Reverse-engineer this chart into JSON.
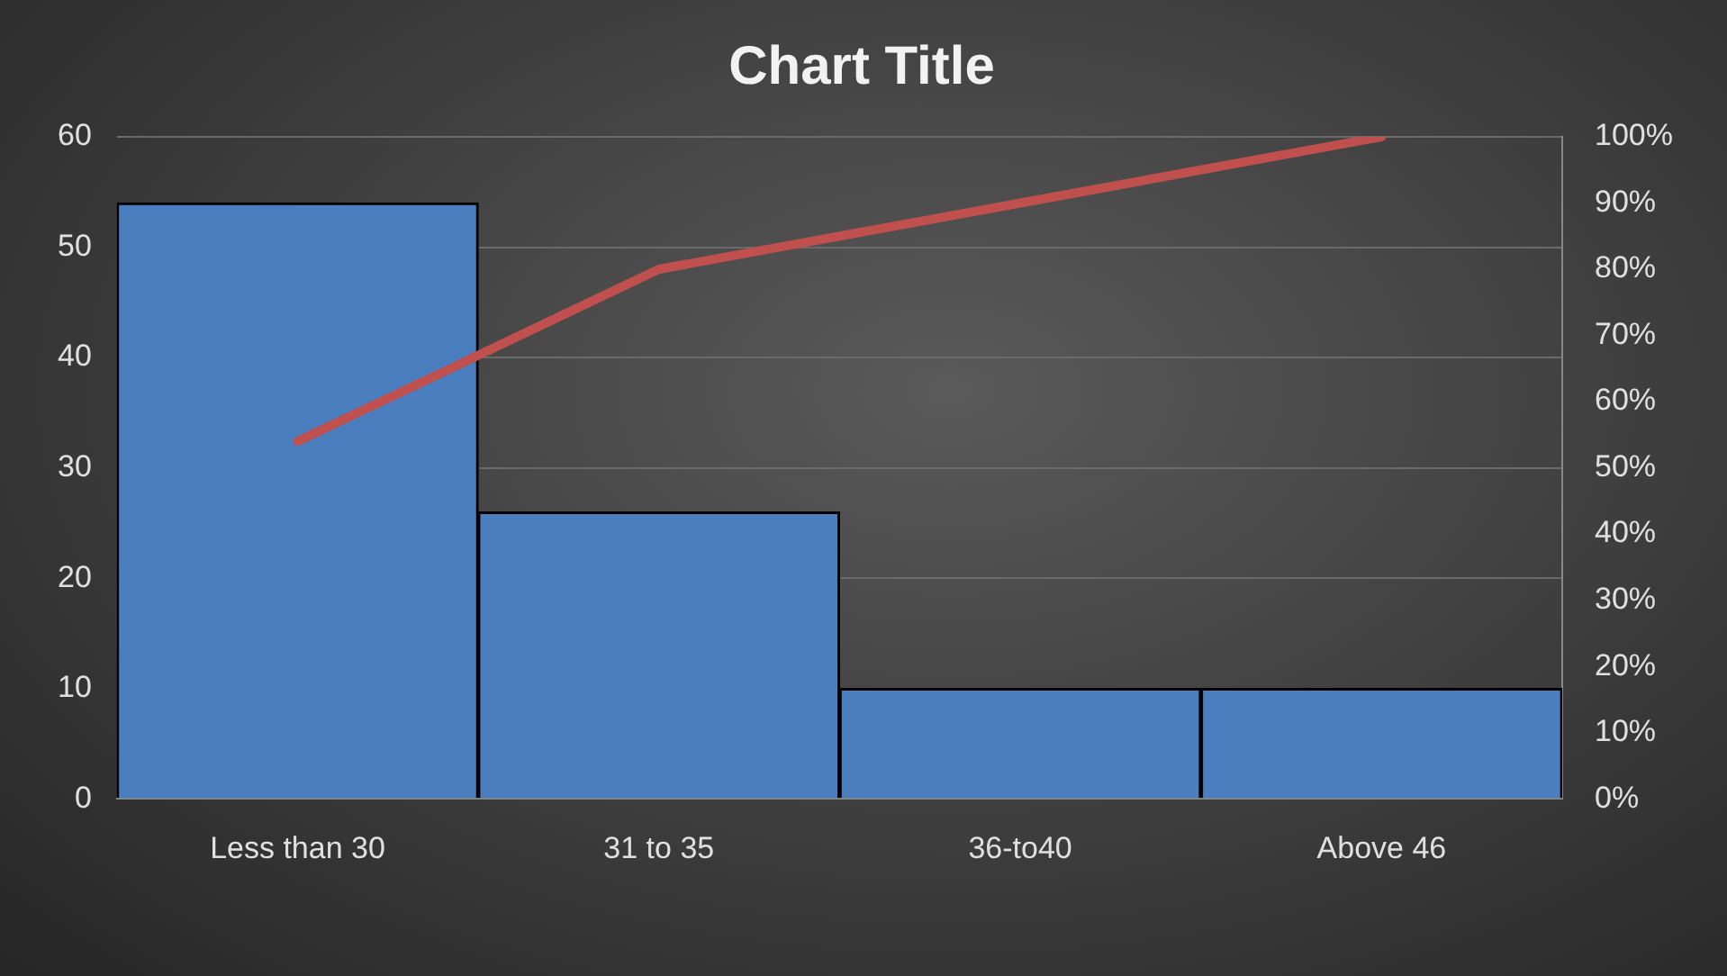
{
  "chart_data": {
    "type": "bar",
    "title": "Chart Title",
    "categories": [
      "Less than 30",
      "31 to 35",
      "36-to40",
      "Above 46"
    ],
    "series": [
      {
        "color": "#4a7ebf",
        "values": [
          54,
          26,
          10,
          10
        ]
      },
      {
        "type": "line",
        "axis": "y2",
        "color": "#c0504d",
        "values": [
          54,
          80,
          90,
          100
        ]
      }
    ],
    "ylim": [
      0,
      60
    ],
    "yticks": [
      0,
      10,
      20,
      30,
      40,
      50,
      60
    ],
    "y2lim": [
      0,
      100
    ],
    "y2ticks": [
      {
        "value": 0,
        "label": "0%"
      },
      {
        "value": 10,
        "label": "10%"
      },
      {
        "value": 20,
        "label": "20%"
      },
      {
        "value": 30,
        "label": "30%"
      },
      {
        "value": 40,
        "label": "40%"
      },
      {
        "value": 50,
        "label": "50%"
      },
      {
        "value": 60,
        "label": "60%"
      },
      {
        "value": 70,
        "label": "70%"
      },
      {
        "value": 80,
        "label": "80%"
      },
      {
        "value": 90,
        "label": "90%"
      },
      {
        "value": 100,
        "label": "100%"
      }
    ],
    "grid": "y",
    "legend": false,
    "marker": "none"
  }
}
